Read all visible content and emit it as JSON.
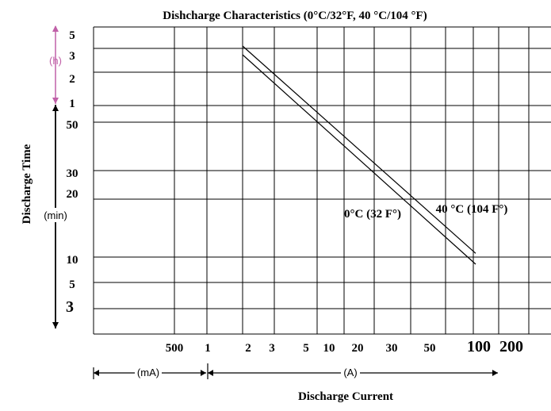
{
  "chart_data": {
    "type": "line",
    "title": "Dishcharge Characteristics (0°C/32°F, 40 °C/104 °F)",
    "xlabel": "Discharge Current",
    "ylabel": "Discharge Time",
    "x_scale": "log",
    "y_scale": "log",
    "x_ticks": [
      "500",
      "1",
      "2",
      "3",
      "5",
      "10",
      "20",
      "30",
      "50",
      "100",
      "200"
    ],
    "x_units": {
      "mA": "(mA)",
      "A": "(A)"
    },
    "y_ticks_hours": [
      "5",
      "3",
      "2",
      "1"
    ],
    "y_ticks_minutes": [
      "50",
      "30",
      "20",
      "10",
      "5",
      "3"
    ],
    "y_units": {
      "hours": "(h)",
      "minutes": "(min)"
    },
    "grid": true,
    "series": [
      {
        "name": "0°C (32 F°)",
        "x_A": [
          2.0,
          120.0
        ],
        "y_min": [
          160,
          9.5
        ]
      },
      {
        "name": "40 °C (104 F°)",
        "x_A": [
          2.0,
          120.0
        ],
        "y_min": [
          180,
          11
        ]
      }
    ]
  },
  "colors": {
    "hours_arrow": "#c060a8",
    "line": "#000000"
  }
}
